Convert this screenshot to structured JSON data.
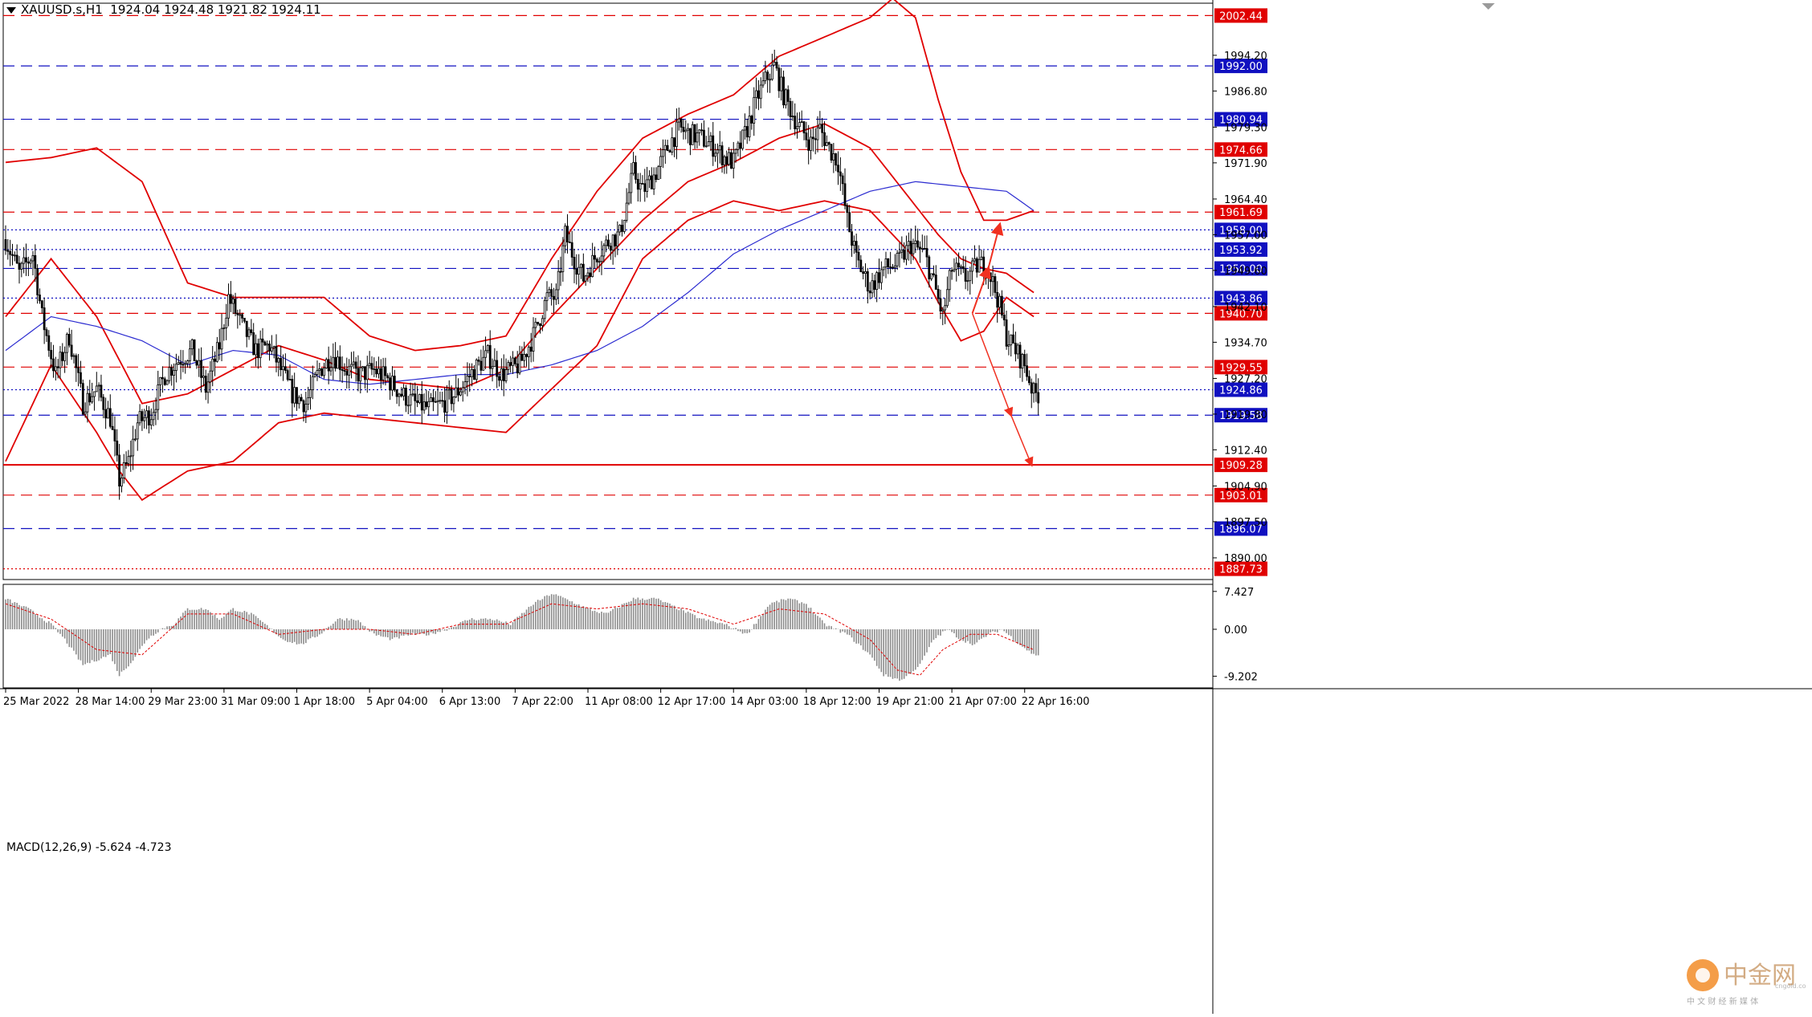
{
  "header": {
    "symbol": "XAUUSD.s,H1",
    "ohlc": "1924.04 1924.48 1921.82 1924.11"
  },
  "macd_header": {
    "label": "MACD(12,26,9)",
    "values": "-5.624 -4.723"
  },
  "colors": {
    "candle": "#000000",
    "bollinger": "#e00000",
    "ma": "#2a2ad0",
    "red_level": "#e00000",
    "blue_level": "#1010c0",
    "arrow": "#f03020",
    "macd_hist": "#8c8c8c",
    "macd_signal": "#e00000",
    "price_axis_bg": "#ffffff"
  },
  "chart_data": [
    {
      "type": "candlestick",
      "title": "XAUUSD.s,H1",
      "ylim": [
        1885.5,
        2005
      ],
      "x_ticks": [
        "25 Mar 2022",
        "28 Mar 14:00",
        "29 Mar 23:00",
        "31 Mar 09:00",
        "1 Apr 18:00",
        "5 Apr 04:00",
        "6 Apr 13:00",
        "7 Apr 22:00",
        "11 Apr 08:00",
        "12 Apr 17:00",
        "14 Apr 03:00",
        "18 Apr 12:00",
        "19 Apr 21:00",
        "21 Apr 07:00",
        "22 Apr 16:00"
      ],
      "y_ticks": [
        1890.0,
        1897.5,
        1904.9,
        1912.4,
        1919.8,
        1927.2,
        1934.7,
        1942.1,
        1949.6,
        1957.0,
        1964.4,
        1971.9,
        1979.3,
        1986.8,
        1994.2
      ],
      "close_path": [
        [
          0,
          1956
        ],
        [
          6,
          1949
        ],
        [
          12,
          1953
        ],
        [
          16,
          1940
        ],
        [
          22,
          1928
        ],
        [
          28,
          1936
        ],
        [
          34,
          1922
        ],
        [
          40,
          1925
        ],
        [
          46,
          1919
        ],
        [
          50,
          1906
        ],
        [
          54,
          1910
        ],
        [
          58,
          1918
        ],
        [
          64,
          1920
        ],
        [
          70,
          1928
        ],
        [
          76,
          1931
        ],
        [
          82,
          1933
        ],
        [
          88,
          1925
        ],
        [
          94,
          1934
        ],
        [
          98,
          1944
        ],
        [
          104,
          1938
        ],
        [
          110,
          1933
        ],
        [
          116,
          1934
        ],
        [
          120,
          1930
        ],
        [
          126,
          1924
        ],
        [
          132,
          1922
        ],
        [
          138,
          1929
        ],
        [
          144,
          1932
        ],
        [
          150,
          1929
        ],
        [
          156,
          1928
        ],
        [
          162,
          1929
        ],
        [
          168,
          1927
        ],
        [
          174,
          1924
        ],
        [
          180,
          1922
        ],
        [
          186,
          1921
        ],
        [
          192,
          1922
        ],
        [
          198,
          1924
        ],
        [
          206,
          1929
        ],
        [
          212,
          1932
        ],
        [
          218,
          1928
        ],
        [
          226,
          1930
        ],
        [
          232,
          1936
        ],
        [
          238,
          1944
        ],
        [
          242,
          1944
        ],
        [
          246,
          1957
        ],
        [
          250,
          1952
        ],
        [
          254,
          1948
        ],
        [
          260,
          1953
        ],
        [
          266,
          1956
        ],
        [
          270,
          1957
        ],
        [
          276,
          1970
        ],
        [
          280,
          1966
        ],
        [
          286,
          1970
        ],
        [
          292,
          1976
        ],
        [
          296,
          1979
        ],
        [
          300,
          1978
        ],
        [
          306,
          1977
        ],
        [
          312,
          1975
        ],
        [
          316,
          1973
        ],
        [
          320,
          1972
        ],
        [
          326,
          1979
        ],
        [
          330,
          1985
        ],
        [
          334,
          1989
        ],
        [
          338,
          1992
        ],
        [
          342,
          1986
        ],
        [
          348,
          1980
        ],
        [
          354,
          1976
        ],
        [
          358,
          1979
        ],
        [
          362,
          1975
        ],
        [
          366,
          1972
        ],
        [
          370,
          1960
        ],
        [
          374,
          1952
        ],
        [
          380,
          1946
        ],
        [
          386,
          1950
        ],
        [
          392,
          1951
        ],
        [
          398,
          1955
        ],
        [
          404,
          1953
        ],
        [
          408,
          1947
        ],
        [
          412,
          1940
        ],
        [
          416,
          1950
        ],
        [
          422,
          1948
        ],
        [
          428,
          1951
        ],
        [
          432,
          1950
        ],
        [
          436,
          1944
        ],
        [
          440,
          1936
        ],
        [
          444,
          1933
        ],
        [
          448,
          1930
        ],
        [
          452,
          1924
        ]
      ],
      "n_bars": 455
    },
    {
      "type": "line",
      "series": [
        {
          "role": "bollinger-upper",
          "points": [
            [
              0,
              1972
            ],
            [
              20,
              1973
            ],
            [
              40,
              1975
            ],
            [
              60,
              1968
            ],
            [
              80,
              1947
            ],
            [
              100,
              1944
            ],
            [
              120,
              1944
            ],
            [
              140,
              1944
            ],
            [
              160,
              1936
            ],
            [
              180,
              1933
            ],
            [
              200,
              1934
            ],
            [
              220,
              1936
            ],
            [
              240,
              1952
            ],
            [
              260,
              1966
            ],
            [
              280,
              1977
            ],
            [
              300,
              1982
            ],
            [
              320,
              1986
            ],
            [
              340,
              1994
            ],
            [
              360,
              1998
            ],
            [
              380,
              2002
            ],
            [
              390,
              2006
            ],
            [
              400,
              2002
            ],
            [
              410,
              1985
            ],
            [
              420,
              1970
            ],
            [
              430,
              1960
            ],
            [
              440,
              1960
            ],
            [
              452,
              1962
            ]
          ]
        },
        {
          "role": "bollinger-middle",
          "points": [
            [
              0,
              1940
            ],
            [
              20,
              1952
            ],
            [
              40,
              1940
            ],
            [
              60,
              1922
            ],
            [
              80,
              1924
            ],
            [
              100,
              1929
            ],
            [
              120,
              1934
            ],
            [
              140,
              1931
            ],
            [
              160,
              1927
            ],
            [
              180,
              1926
            ],
            [
              200,
              1925
            ],
            [
              220,
              1929
            ],
            [
              240,
              1940
            ],
            [
              260,
              1950
            ],
            [
              280,
              1960
            ],
            [
              300,
              1968
            ],
            [
              320,
              1972
            ],
            [
              340,
              1977
            ],
            [
              360,
              1980
            ],
            [
              380,
              1975
            ],
            [
              400,
              1963
            ],
            [
              410,
              1957
            ],
            [
              420,
              1952
            ],
            [
              430,
              1950
            ],
            [
              440,
              1949
            ],
            [
              452,
              1945
            ]
          ]
        },
        {
          "role": "bollinger-lower",
          "points": [
            [
              0,
              1910
            ],
            [
              20,
              1930
            ],
            [
              40,
              1916
            ],
            [
              50,
              1908
            ],
            [
              60,
              1902
            ],
            [
              80,
              1908
            ],
            [
              100,
              1910
            ],
            [
              110,
              1914
            ],
            [
              120,
              1918
            ],
            [
              140,
              1920
            ],
            [
              160,
              1919
            ],
            [
              180,
              1918
            ],
            [
              200,
              1917
            ],
            [
              220,
              1916
            ],
            [
              240,
              1925
            ],
            [
              260,
              1934
            ],
            [
              280,
              1952
            ],
            [
              300,
              1960
            ],
            [
              320,
              1964
            ],
            [
              340,
              1962
            ],
            [
              360,
              1964
            ],
            [
              380,
              1962
            ],
            [
              400,
              1952
            ],
            [
              410,
              1943
            ],
            [
              420,
              1935
            ],
            [
              430,
              1937
            ],
            [
              440,
              1944
            ],
            [
              452,
              1940
            ]
          ]
        },
        {
          "role": "moving-average",
          "points": [
            [
              0,
              1933
            ],
            [
              20,
              1940
            ],
            [
              40,
              1938
            ],
            [
              60,
              1935
            ],
            [
              80,
              1930
            ],
            [
              100,
              1933
            ],
            [
              120,
              1932
            ],
            [
              140,
              1927
            ],
            [
              160,
              1926
            ],
            [
              180,
              1927
            ],
            [
              200,
              1928
            ],
            [
              220,
              1928
            ],
            [
              240,
              1930
            ],
            [
              260,
              1933
            ],
            [
              280,
              1938
            ],
            [
              300,
              1945
            ],
            [
              320,
              1953
            ],
            [
              340,
              1958
            ],
            [
              360,
              1962
            ],
            [
              380,
              1966
            ],
            [
              400,
              1968
            ],
            [
              420,
              1967
            ],
            [
              440,
              1966
            ],
            [
              452,
              1962
            ]
          ]
        }
      ]
    },
    {
      "type": "line",
      "levels": [
        {
          "value": "2002.44",
          "kind": "red-dash"
        },
        {
          "value": "1992.00",
          "kind": "blue-dash"
        },
        {
          "value": "1980.94",
          "kind": "blue-dash"
        },
        {
          "value": "1974.66",
          "kind": "red-dash"
        },
        {
          "value": "1961.69",
          "kind": "red-dash"
        },
        {
          "value": "1958.00",
          "kind": "blue-dot"
        },
        {
          "value": "1953.92",
          "kind": "blue-dot"
        },
        {
          "value": "1950.00",
          "kind": "blue-dash"
        },
        {
          "value": "1943.86",
          "kind": "blue-dot"
        },
        {
          "value": "1940.70",
          "kind": "red-dash"
        },
        {
          "value": "1929.55",
          "kind": "red-dash"
        },
        {
          "value": "1924.86",
          "kind": "blue-dot"
        },
        {
          "value": "1919.58",
          "kind": "blue-dash"
        },
        {
          "value": "1909.28",
          "kind": "red-solid"
        },
        {
          "value": "1903.01",
          "kind": "red-dash"
        },
        {
          "value": "1896.07",
          "kind": "blue-dash"
        },
        {
          "value": "1887.73",
          "kind": "red-dot"
        }
      ]
    },
    {
      "type": "bar",
      "title": "MACD(12,26,9)",
      "ylim": [
        -11.5,
        8.5
      ],
      "y_ticks": [
        "7.427",
        "0.00",
        "-9.202"
      ],
      "histogram_path": [
        [
          0,
          6
        ],
        [
          10,
          4
        ],
        [
          20,
          1
        ],
        [
          26,
          -2
        ],
        [
          34,
          -7
        ],
        [
          40,
          -6
        ],
        [
          46,
          -5
        ],
        [
          50,
          -9
        ],
        [
          56,
          -6
        ],
        [
          62,
          -2
        ],
        [
          68,
          0
        ],
        [
          74,
          1
        ],
        [
          80,
          4
        ],
        [
          88,
          4
        ],
        [
          94,
          2
        ],
        [
          100,
          4
        ],
        [
          108,
          3
        ],
        [
          114,
          1
        ],
        [
          122,
          -2
        ],
        [
          130,
          -3
        ],
        [
          138,
          -1
        ],
        [
          146,
          2
        ],
        [
          154,
          2
        ],
        [
          162,
          -1
        ],
        [
          170,
          -2
        ],
        [
          178,
          -1
        ],
        [
          186,
          -1
        ],
        [
          194,
          0
        ],
        [
          204,
          2
        ],
        [
          214,
          2
        ],
        [
          222,
          1
        ],
        [
          232,
          5
        ],
        [
          240,
          7
        ],
        [
          246,
          6
        ],
        [
          256,
          4
        ],
        [
          264,
          3
        ],
        [
          276,
          6
        ],
        [
          286,
          6
        ],
        [
          296,
          4
        ],
        [
          306,
          2
        ],
        [
          316,
          1
        ],
        [
          326,
          -1
        ],
        [
          336,
          5
        ],
        [
          344,
          6
        ],
        [
          352,
          5
        ],
        [
          360,
          1
        ],
        [
          370,
          -1
        ],
        [
          380,
          -5
        ],
        [
          386,
          -9
        ],
        [
          394,
          -10
        ],
        [
          402,
          -7
        ],
        [
          408,
          -2
        ],
        [
          414,
          0
        ],
        [
          420,
          -2
        ],
        [
          426,
          -3
        ],
        [
          432,
          -1
        ],
        [
          438,
          0
        ],
        [
          446,
          -3
        ],
        [
          452,
          -5
        ]
      ],
      "signal_path": [
        [
          0,
          5
        ],
        [
          20,
          2
        ],
        [
          40,
          -4
        ],
        [
          60,
          -5
        ],
        [
          80,
          3
        ],
        [
          100,
          3
        ],
        [
          120,
          -1
        ],
        [
          140,
          0
        ],
        [
          160,
          0
        ],
        [
          180,
          -1
        ],
        [
          200,
          1
        ],
        [
          220,
          1
        ],
        [
          240,
          5
        ],
        [
          260,
          4
        ],
        [
          280,
          5
        ],
        [
          300,
          4
        ],
        [
          320,
          1
        ],
        [
          340,
          4
        ],
        [
          360,
          3
        ],
        [
          380,
          -2
        ],
        [
          392,
          -8
        ],
        [
          402,
          -9
        ],
        [
          412,
          -4
        ],
        [
          424,
          -1
        ],
        [
          436,
          -1
        ],
        [
          452,
          -4
        ]
      ]
    }
  ],
  "logo": {
    "text": "中金网",
    "subtext": "中 文 财 经 新 媒 体",
    "url": "cngold.com"
  }
}
